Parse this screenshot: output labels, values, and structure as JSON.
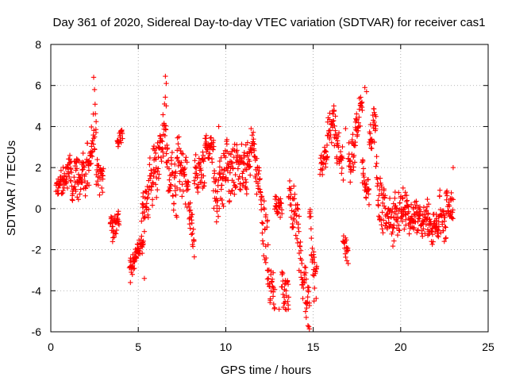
{
  "chart_data": {
    "type": "scatter",
    "title": "Day 361 of 2020, Sidereal Day-to-day VTEC variation (SDTVAR) for receiver cas1",
    "xlabel": "GPS time / hours",
    "ylabel": "SDTVAR / TECUs",
    "xlim": [
      0,
      25
    ],
    "ylim": [
      -6,
      8
    ],
    "grid": true,
    "marker": "plus",
    "x_ticks": [
      "0",
      "5",
      "10",
      "15",
      "20",
      "25"
    ],
    "y_ticks": [
      "-6",
      "-4",
      "-2",
      "0",
      "2",
      "4",
      "6",
      "8"
    ],
    "series": [
      {
        "name": "SDTVAR",
        "color": "#ff0000",
        "trace": [
          {
            "x": [
              0.3,
              0.5
            ],
            "y": [
              1.0,
              1.2
            ],
            "spread": 0.6
          },
          {
            "x": [
              0.5,
              1.0
            ],
            "y": [
              1.2,
              1.6
            ],
            "spread": 0.8
          },
          {
            "x": [
              1.0,
              1.8
            ],
            "y": [
              1.6,
              1.4
            ],
            "spread": 1.2
          },
          {
            "x": [
              1.8,
              2.3
            ],
            "y": [
              1.4,
              2.6
            ],
            "spread": 1.4
          },
          {
            "x": [
              2.3,
              2.6
            ],
            "y": [
              2.6,
              4.0
            ],
            "spread": 1.6
          },
          {
            "x": [
              2.6,
              3.0
            ],
            "y": [
              1.5,
              1.5
            ],
            "spread": 1.0
          },
          {
            "x": [
              3.4,
              3.9
            ],
            "y": [
              -1.0,
              -0.5
            ],
            "spread": 0.8
          },
          {
            "x": [
              3.8,
              4.1
            ],
            "y": [
              3.2,
              3.6
            ],
            "spread": 0.4
          },
          {
            "x": [
              4.5,
              4.9
            ],
            "y": [
              -3.0,
              -2.2
            ],
            "spread": 0.6
          },
          {
            "x": [
              4.9,
              5.3
            ],
            "y": [
              -2.2,
              -1.6
            ],
            "spread": 0.5
          },
          {
            "x": [
              5.2,
              5.6
            ],
            "y": [
              -0.3,
              0.6
            ],
            "spread": 1.2
          },
          {
            "x": [
              5.6,
              6.2
            ],
            "y": [
              1.0,
              2.4
            ],
            "spread": 1.6
          },
          {
            "x": [
              6.2,
              6.6
            ],
            "y": [
              2.4,
              4.6
            ],
            "spread": 1.4
          },
          {
            "x": [
              6.6,
              7.2
            ],
            "y": [
              2.0,
              0.8
            ],
            "spread": 1.6
          },
          {
            "x": [
              7.2,
              7.8
            ],
            "y": [
              2.5,
              1.2
            ],
            "spread": 1.4
          },
          {
            "x": [
              7.8,
              8.2
            ],
            "y": [
              1.0,
              -1.8
            ],
            "spread": 1.0
          },
          {
            "x": [
              8.2,
              8.8
            ],
            "y": [
              1.5,
              1.8
            ],
            "spread": 1.2
          },
          {
            "x": [
              8.8,
              9.3
            ],
            "y": [
              3.0,
              2.8
            ],
            "spread": 0.8
          },
          {
            "x": [
              9.3,
              10.0
            ],
            "y": [
              0.2,
              1.8
            ],
            "spread": 1.6
          },
          {
            "x": [
              10.0,
              10.6
            ],
            "y": [
              1.8,
              2.0
            ],
            "spread": 1.8
          },
          {
            "x": [
              10.6,
              11.2
            ],
            "y": [
              2.0,
              1.6
            ],
            "spread": 1.6
          },
          {
            "x": [
              11.2,
              11.6
            ],
            "y": [
              2.2,
              3.2
            ],
            "spread": 1.2
          },
          {
            "x": [
              11.6,
              12.0
            ],
            "y": [
              2.6,
              1.0
            ],
            "spread": 1.4
          },
          {
            "x": [
              12.0,
              12.4
            ],
            "y": [
              0.0,
              -2.0
            ],
            "spread": 1.6
          },
          {
            "x": [
              12.4,
              12.8
            ],
            "y": [
              -3.5,
              -4.2
            ],
            "spread": 1.0
          },
          {
            "x": [
              12.8,
              13.2
            ],
            "y": [
              0.0,
              0.2
            ],
            "spread": 0.8
          },
          {
            "x": [
              13.2,
              13.6
            ],
            "y": [
              -3.8,
              -4.4
            ],
            "spread": 1.0
          },
          {
            "x": [
              13.6,
              14.2
            ],
            "y": [
              0.2,
              -0.6
            ],
            "spread": 1.4
          },
          {
            "x": [
              14.2,
              14.8
            ],
            "y": [
              -2.5,
              -4.8
            ],
            "spread": 1.4
          },
          {
            "x": [
              14.8,
              15.2
            ],
            "y": [
              -1.0,
              -3.6
            ],
            "spread": 1.4
          },
          {
            "x": [
              15.4,
              15.8
            ],
            "y": [
              2.0,
              2.8
            ],
            "spread": 0.8
          },
          {
            "x": [
              15.8,
              16.2
            ],
            "y": [
              3.4,
              4.4
            ],
            "spread": 1.0
          },
          {
            "x": [
              16.2,
              16.7
            ],
            "y": [
              3.6,
              2.0
            ],
            "spread": 1.2
          },
          {
            "x": [
              16.7,
              17.0
            ],
            "y": [
              -1.6,
              -2.2
            ],
            "spread": 0.6
          },
          {
            "x": [
              17.0,
              17.4
            ],
            "y": [
              2.0,
              3.0
            ],
            "spread": 1.2
          },
          {
            "x": [
              17.4,
              17.8
            ],
            "y": [
              3.5,
              5.4
            ],
            "spread": 1.0
          },
          {
            "x": [
              17.8,
              18.2
            ],
            "y": [
              1.6,
              0.6
            ],
            "spread": 1.2
          },
          {
            "x": [
              18.2,
              18.6
            ],
            "y": [
              3.0,
              4.6
            ],
            "spread": 1.0
          },
          {
            "x": [
              18.6,
              19.0
            ],
            "y": [
              1.5,
              -0.5
            ],
            "spread": 1.4
          },
          {
            "x": [
              19.0,
              19.6
            ],
            "y": [
              0.0,
              -0.8
            ],
            "spread": 1.2
          },
          {
            "x": [
              19.6,
              20.3
            ],
            "y": [
              -0.3,
              0.0
            ],
            "spread": 1.2
          },
          {
            "x": [
              20.3,
              21.0
            ],
            "y": [
              -0.2,
              -0.6
            ],
            "spread": 1.0
          },
          {
            "x": [
              21.0,
              21.6
            ],
            "y": [
              -0.6,
              -0.4
            ],
            "spread": 1.0
          },
          {
            "x": [
              21.6,
              22.2
            ],
            "y": [
              -1.2,
              -0.6
            ],
            "spread": 0.8
          },
          {
            "x": [
              22.2,
              22.6
            ],
            "y": [
              0.0,
              -1.0
            ],
            "spread": 1.2
          },
          {
            "x": [
              22.6,
              23.0
            ],
            "y": [
              0.4,
              0.0
            ],
            "spread": 0.8
          }
        ],
        "extremes": [
          {
            "x": 2.45,
            "y": 6.4
          },
          {
            "x": 2.5,
            "y": 5.8
          },
          {
            "x": 6.55,
            "y": 6.45
          },
          {
            "x": 6.6,
            "y": 6.1
          },
          {
            "x": 6.5,
            "y": 5.1
          },
          {
            "x": 17.95,
            "y": 5.9
          },
          {
            "x": 18.05,
            "y": 5.7
          },
          {
            "x": 14.7,
            "y": -5.7
          },
          {
            "x": 14.6,
            "y": -5.3
          },
          {
            "x": 13.05,
            "y": -4.9
          },
          {
            "x": 4.55,
            "y": -3.6
          },
          {
            "x": 5.35,
            "y": -3.4
          },
          {
            "x": 23.0,
            "y": 2.0
          },
          {
            "x": 11.45,
            "y": 3.9
          },
          {
            "x": 9.6,
            "y": 4.0
          },
          {
            "x": 16.85,
            "y": 3.9
          },
          {
            "x": 12.4,
            "y": -3.0
          },
          {
            "x": 15.05,
            "y": -4.5
          }
        ]
      }
    ]
  }
}
